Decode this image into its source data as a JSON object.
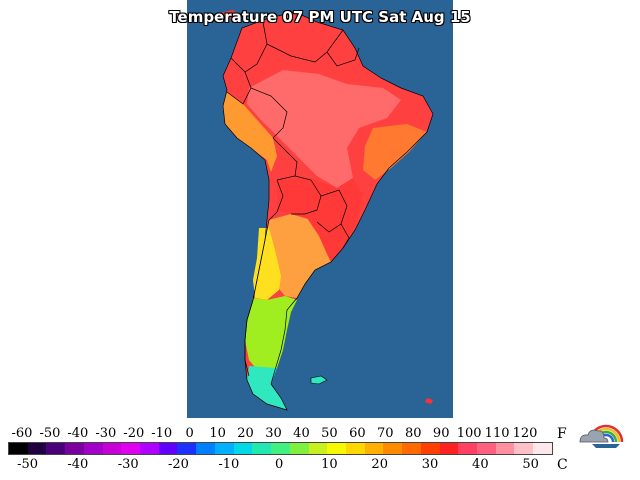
{
  "title": "Temperature 07 PM UTC Sat Aug 15",
  "map": {
    "region": "South America",
    "ocean_color": "#2a6496",
    "zones": [
      {
        "name": "northern-coast",
        "color": "#ff3030"
      },
      {
        "name": "amazon-hot-core",
        "color": "#ff6a6a"
      },
      {
        "name": "andes-west-coast",
        "color": "#ff9a30"
      },
      {
        "name": "brazil-east-orange",
        "color": "#ff7a30"
      },
      {
        "name": "central-red-band",
        "color": "#ff3838"
      },
      {
        "name": "northern-argentina",
        "color": "#ffa040"
      },
      {
        "name": "central-chile-yellow",
        "color": "#ffe020"
      },
      {
        "name": "patagonia-green",
        "color": "#a0ee20"
      },
      {
        "name": "southern-tip-cyan",
        "color": "#30e8c0"
      }
    ]
  },
  "legend": {
    "fahrenheit_label": "F",
    "celsius_label": "C",
    "fahrenheit_ticks": [
      "-60",
      "-50",
      "-40",
      "-30",
      "-20",
      "-10",
      "0",
      "10",
      "20",
      "30",
      "40",
      "50",
      "60",
      "70",
      "80",
      "90",
      "100",
      "110",
      "120"
    ],
    "fahrenheit_values": [
      -60,
      -50,
      -40,
      -30,
      -20,
      -10,
      0,
      10,
      20,
      30,
      40,
      50,
      60,
      70,
      80,
      90,
      100,
      110,
      120
    ],
    "celsius_ticks": [
      "-50",
      "-40",
      "-30",
      "-20",
      "-10",
      "0",
      "10",
      "20",
      "30",
      "40",
      "50"
    ],
    "celsius_values": [
      -50,
      -40,
      -30,
      -20,
      -10,
      0,
      10,
      20,
      30,
      40,
      50
    ],
    "f_range": [
      -65,
      130
    ],
    "colors": [
      "#000000",
      "#200040",
      "#4a0078",
      "#7a00a0",
      "#a000c8",
      "#c800d8",
      "#e000f0",
      "#b000ff",
      "#6000ff",
      "#1c30ff",
      "#0080ff",
      "#00b0ff",
      "#00d8e8",
      "#20e8b0",
      "#40f080",
      "#80f040",
      "#c8f020",
      "#f8f800",
      "#ffd800",
      "#ffb000",
      "#ff8c00",
      "#ff6a00",
      "#ff4000",
      "#ff2020",
      "#ff4060",
      "#ff6080",
      "#ff90a0",
      "#ffc0c8",
      "#ffe8ec"
    ]
  }
}
